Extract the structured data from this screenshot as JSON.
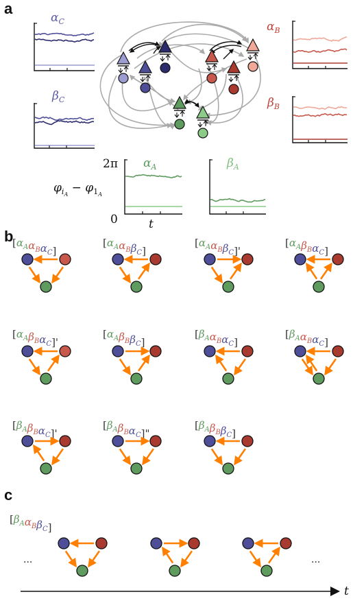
{
  "panel_labels": {
    "a": "a",
    "b": "b",
    "c": "c"
  },
  "colors": {
    "c_dark": "#2b2b6e",
    "c_mid": "#4f4f99",
    "c_light": "#9c9cd0",
    "b_dark": "#a83a30",
    "b_mid": "#c8584c",
    "b_light": "#f0a898",
    "a_dark": "#3e7a40",
    "a_mid": "#5f9a5f",
    "a_light": "#8ccc88",
    "arrow": "#ff7f00",
    "graph_edge": "#aaaaaa",
    "axis": "#111111"
  },
  "panel_a": {
    "plot_titles": {
      "alpha_C": {
        "sym": "α",
        "sub": "C"
      },
      "beta_C": {
        "sym": "β",
        "sub": "C"
      },
      "alpha_B": {
        "sym": "α",
        "sub": "B"
      },
      "beta_B": {
        "sym": "β",
        "sub": "B"
      },
      "alpha_A": {
        "sym": "α",
        "sub": "A"
      },
      "beta_A": {
        "sym": "β",
        "sub": "A"
      }
    },
    "y_axis": {
      "top": "2π",
      "bottom": "0"
    },
    "phase_label": {
      "left": "φ",
      "left_sub": "i",
      "left_subsub": "A",
      "minus": " − ",
      "right": "φ",
      "right_sub": "1",
      "right_subsub": "A"
    },
    "time_label": "t"
  },
  "panel_b": {
    "motifs": [
      {
        "terms": [
          [
            "α",
            "A",
            "a"
          ],
          [
            "α",
            "B",
            "b"
          ],
          [
            "α",
            "C",
            "c"
          ]
        ],
        "prime": ""
      },
      {
        "terms": [
          [
            "α",
            "A",
            "a"
          ],
          [
            "α",
            "B",
            "b"
          ],
          [
            "β",
            "C",
            "c"
          ]
        ],
        "prime": ""
      },
      {
        "terms": [
          [
            "α",
            "A",
            "a"
          ],
          [
            "α",
            "B",
            "b"
          ],
          [
            "β",
            "C",
            "c"
          ]
        ],
        "prime": "'"
      },
      {
        "terms": [
          [
            "α",
            "A",
            "a"
          ],
          [
            "β",
            "B",
            "b"
          ],
          [
            "α",
            "C",
            "c"
          ]
        ],
        "prime": ""
      },
      {
        "terms": [
          [
            "α",
            "A",
            "a"
          ],
          [
            "β",
            "B",
            "b"
          ],
          [
            "α",
            "C",
            "c"
          ]
        ],
        "prime": "'"
      },
      {
        "terms": [
          [
            "α",
            "A",
            "a"
          ],
          [
            "β",
            "B",
            "b"
          ],
          [
            "β",
            "C",
            "c"
          ]
        ],
        "prime": ""
      },
      {
        "terms": [
          [
            "β",
            "A",
            "a"
          ],
          [
            "α",
            "B",
            "b"
          ],
          [
            "α",
            "C",
            "c"
          ]
        ],
        "prime": ""
      },
      {
        "terms": [
          [
            "β",
            "A",
            "a"
          ],
          [
            "α",
            "B",
            "b"
          ],
          [
            "α",
            "C",
            "c"
          ]
        ],
        "prime": ""
      },
      {
        "terms": [
          [
            "β",
            "A",
            "a"
          ],
          [
            "β",
            "B",
            "b"
          ],
          [
            "α",
            "C",
            "c"
          ]
        ],
        "prime": "'"
      },
      {
        "terms": [
          [
            "β",
            "A",
            "a"
          ],
          [
            "β",
            "B",
            "b"
          ],
          [
            "α",
            "C",
            "c"
          ]
        ],
        "prime": "\""
      },
      {
        "terms": [
          [
            "β",
            "A",
            "a"
          ],
          [
            "β",
            "B",
            "b"
          ],
          [
            "β",
            "C",
            "c"
          ]
        ],
        "prime": ""
      }
    ]
  },
  "panel_c": {
    "label_terms": [
      [
        "β",
        "A",
        "a"
      ],
      [
        "α",
        "B",
        "b"
      ],
      [
        "β",
        "C",
        "c"
      ]
    ],
    "ellipsis_left": "...",
    "ellipsis_right": "...",
    "time_label": "t"
  }
}
